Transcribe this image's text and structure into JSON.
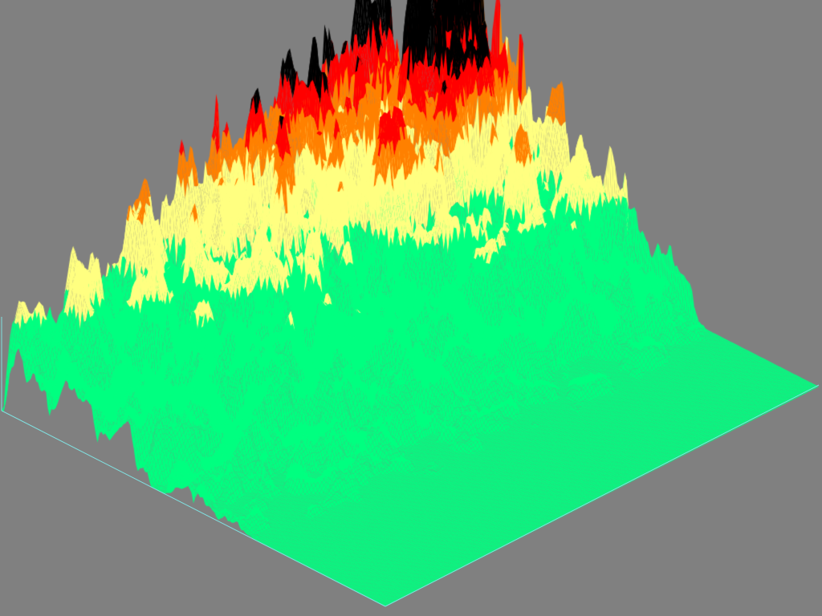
{
  "scene": {
    "background_color": "#808080",
    "base_frame_color": "#80e0e0",
    "elevation_colors": [
      "#00ff80",
      "#ffff80",
      "#ff8000",
      "#ff0000",
      "#000000"
    ]
  }
}
